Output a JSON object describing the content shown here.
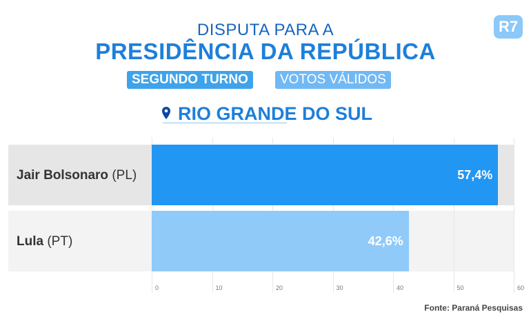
{
  "header": {
    "line1": "DISPUTA PARA A",
    "line2": "PRESIDÊNCIA DA REPÚBLICA",
    "tag1": "SEGUNDO TURNO",
    "tag2": "VOTOS VÁLIDOS",
    "location": "RIO GRANDE DO SUL",
    "logo": "R7"
  },
  "chart_data": {
    "type": "bar",
    "orientation": "horizontal",
    "categories": [
      {
        "name": "Jair Bolsonaro",
        "party": "(PL)"
      },
      {
        "name": "Lula",
        "party": "(PT)"
      }
    ],
    "values": [
      57.4,
      42.6
    ],
    "labels": [
      "57,4%",
      "42,6%"
    ],
    "colors": [
      "#2196f3",
      "#90caf9"
    ],
    "xlim": [
      0,
      60
    ],
    "xticks": [
      "0",
      "10",
      "20",
      "30",
      "40",
      "50",
      "60"
    ],
    "grid": true
  },
  "footer": {
    "source": "Fonte: Paraná Pesquisas"
  }
}
